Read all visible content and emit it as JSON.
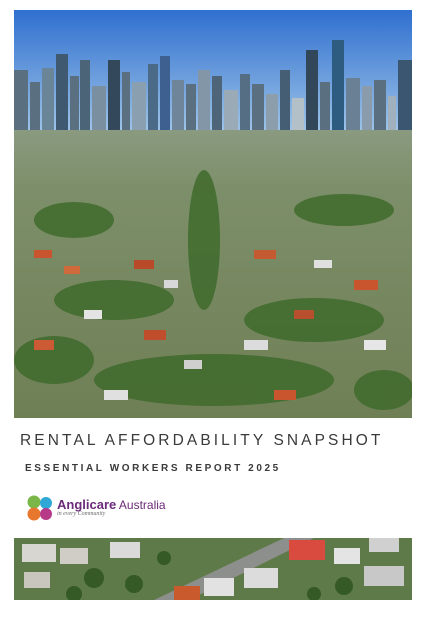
{
  "cover": {
    "title": "RENTAL AFFORDABILITY SNAPSHOT",
    "subtitle": "ESSENTIAL WORKERS REPORT 2025"
  },
  "logo": {
    "name_bold": "Anglicare",
    "name_light": " Australia",
    "tagline": "in every Community",
    "colors": [
      "#7ab648",
      "#2fa8d8",
      "#e8772e",
      "#b63a87"
    ]
  },
  "hero_image": {
    "content": "aerial-suburb-with-city-skyline"
  },
  "bottom_image": {
    "content": "aerial-suburban-street"
  }
}
